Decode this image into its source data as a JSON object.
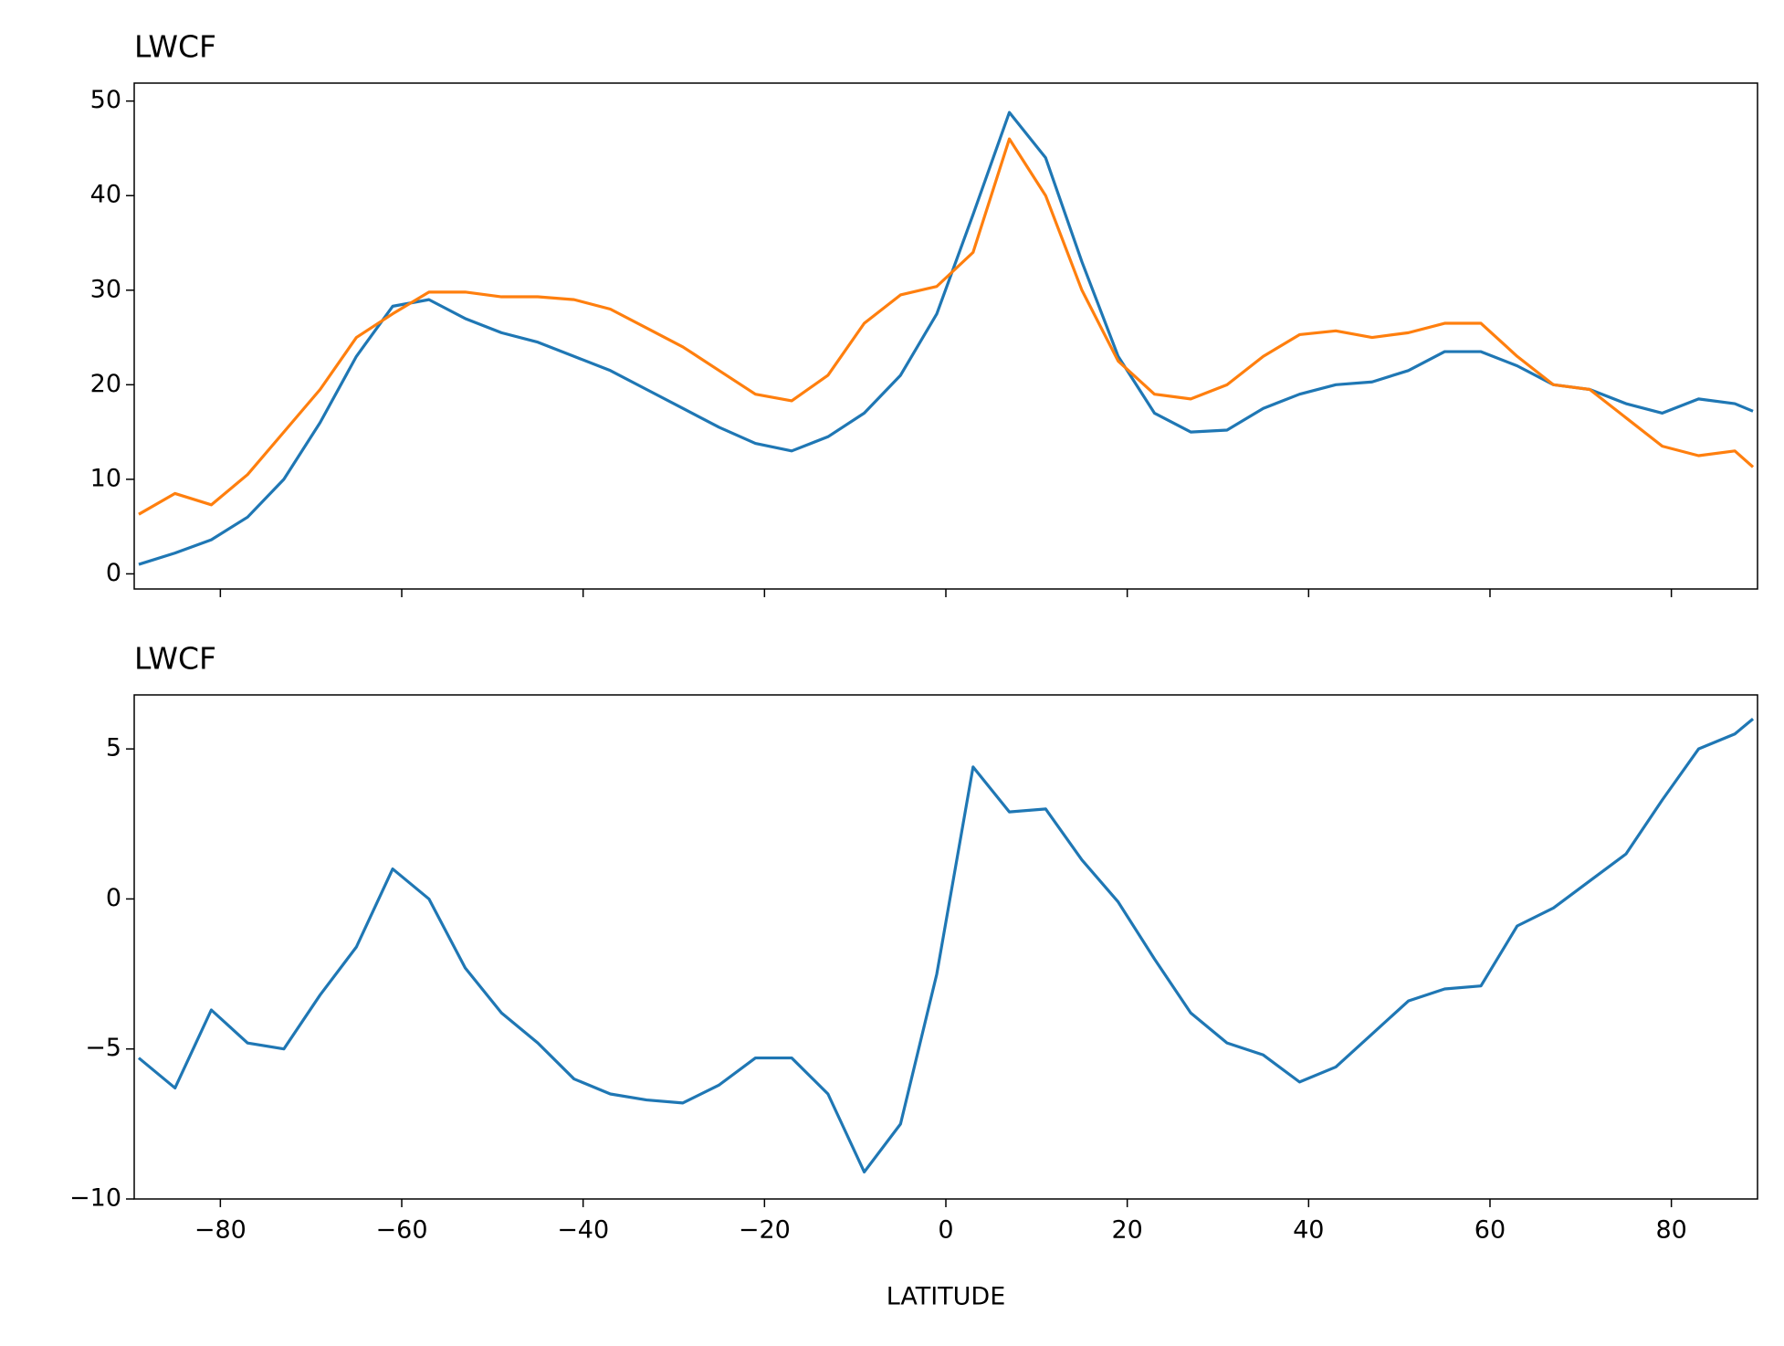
{
  "chart_data": [
    {
      "type": "line",
      "title": "LWCF",
      "x": [
        -89,
        -85,
        -81,
        -77,
        -73,
        -69,
        -65,
        -61,
        -57,
        -53,
        -49,
        -45,
        -41,
        -37,
        -33,
        -29,
        -25,
        -21,
        -17,
        -13,
        -9,
        -5,
        -1,
        3,
        7,
        11,
        15,
        19,
        23,
        27,
        31,
        35,
        39,
        43,
        47,
        51,
        55,
        59,
        63,
        67,
        71,
        75,
        79,
        83,
        87,
        89
      ],
      "series": [
        {
          "color": "#1f77b4",
          "values": [
            1,
            2.2,
            3.6,
            6.0,
            10,
            16,
            23,
            28.3,
            29,
            27,
            25.5,
            24.5,
            23,
            21.5,
            19.5,
            17.5,
            15.5,
            13.8,
            13,
            14.5,
            17,
            21,
            27.5,
            38,
            48.8,
            44,
            33,
            23,
            17,
            15,
            15.2,
            17.5,
            19,
            20,
            20.3,
            21.5,
            23.5,
            23.5,
            22,
            20,
            19.5,
            18,
            17,
            18.5,
            18,
            17.2
          ]
        },
        {
          "color": "#ff7f0e",
          "values": [
            6.3,
            8.5,
            7.3,
            10.5,
            15,
            19.5,
            25,
            27.5,
            29.8,
            29.8,
            29.3,
            29.3,
            29,
            28,
            26,
            24,
            21.5,
            19,
            18.3,
            21,
            26.5,
            29.5,
            30.4,
            34,
            46,
            40,
            30,
            22.5,
            19,
            18.5,
            20,
            23,
            25.3,
            25.7,
            25,
            25.5,
            26.5,
            26.5,
            23,
            20,
            19.5,
            16.5,
            13.5,
            12.5,
            13,
            11.3
          ]
        }
      ],
      "xlim": [
        -89.5,
        89.5
      ],
      "ylim": [
        -1.6,
        51.9
      ],
      "xticks": [
        -80,
        -60,
        -40,
        -20,
        0,
        20,
        40,
        60,
        80
      ],
      "yticks": [
        0,
        10,
        20,
        30,
        40,
        50
      ]
    },
    {
      "type": "line",
      "title": "LWCF",
      "xlabel": "LATITUDE",
      "x": [
        -89,
        -85,
        -81,
        -77,
        -73,
        -69,
        -65,
        -61,
        -57,
        -53,
        -49,
        -45,
        -41,
        -37,
        -33,
        -29,
        -25,
        -21,
        -17,
        -13,
        -9,
        -5,
        -1,
        3,
        7,
        11,
        15,
        19,
        23,
        27,
        31,
        35,
        39,
        43,
        47,
        51,
        55,
        59,
        63,
        67,
        71,
        75,
        79,
        83,
        87,
        89
      ],
      "series": [
        {
          "color": "#1f77b4",
          "values": [
            -5.3,
            -6.3,
            -3.7,
            -4.8,
            -5,
            -3.2,
            -1.6,
            1.0,
            0,
            -2.3,
            -3.8,
            -4.8,
            -6.0,
            -6.5,
            -6.7,
            -6.8,
            -6.2,
            -5.3,
            -5.3,
            -6.5,
            -9.1,
            -7.5,
            -2.5,
            4.4,
            2.9,
            3,
            1.3,
            -0.1,
            -2.0,
            -3.8,
            -4.8,
            -5.2,
            -6.1,
            -5.6,
            -4.5,
            -3.4,
            -3,
            -2.9,
            -0.9,
            -0.3,
            0.6,
            1.5,
            3.3,
            5,
            5.5,
            6
          ]
        }
      ],
      "xlim": [
        -89.5,
        89.5
      ],
      "ylim": [
        -10,
        6.8
      ],
      "xticks": [
        {
          "value": -80,
          "label": "−80"
        },
        {
          "value": -60,
          "label": "−60"
        },
        {
          "value": -40,
          "label": "−40"
        },
        {
          "value": -20,
          "label": "−20"
        },
        0,
        20,
        40,
        60,
        80
      ],
      "yticks": [
        {
          "value": -10,
          "label": "−10"
        },
        {
          "value": -5,
          "label": "−5"
        },
        0,
        5
      ]
    }
  ]
}
